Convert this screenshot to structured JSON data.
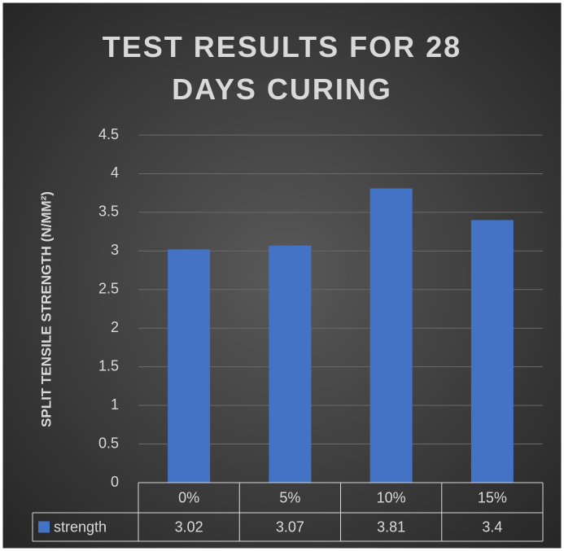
{
  "chart_data": {
    "type": "bar",
    "title": "TEST RESULTS FOR 28 DAYS CURING",
    "y_label": "SPLIT TENSILE STRENGTH (N/MM²)",
    "categories": [
      "0%",
      "5%",
      "10%",
      "15%"
    ],
    "series": [
      {
        "name": "strength",
        "color": "#4472c4",
        "values": [
          3.02,
          3.07,
          3.81,
          3.4
        ]
      }
    ],
    "ylim": [
      0,
      4.5
    ],
    "yticks": [
      0,
      0.5,
      1,
      1.5,
      2,
      2.5,
      3,
      3.5,
      4,
      4.5
    ],
    "grid": true,
    "data_table": true
  }
}
